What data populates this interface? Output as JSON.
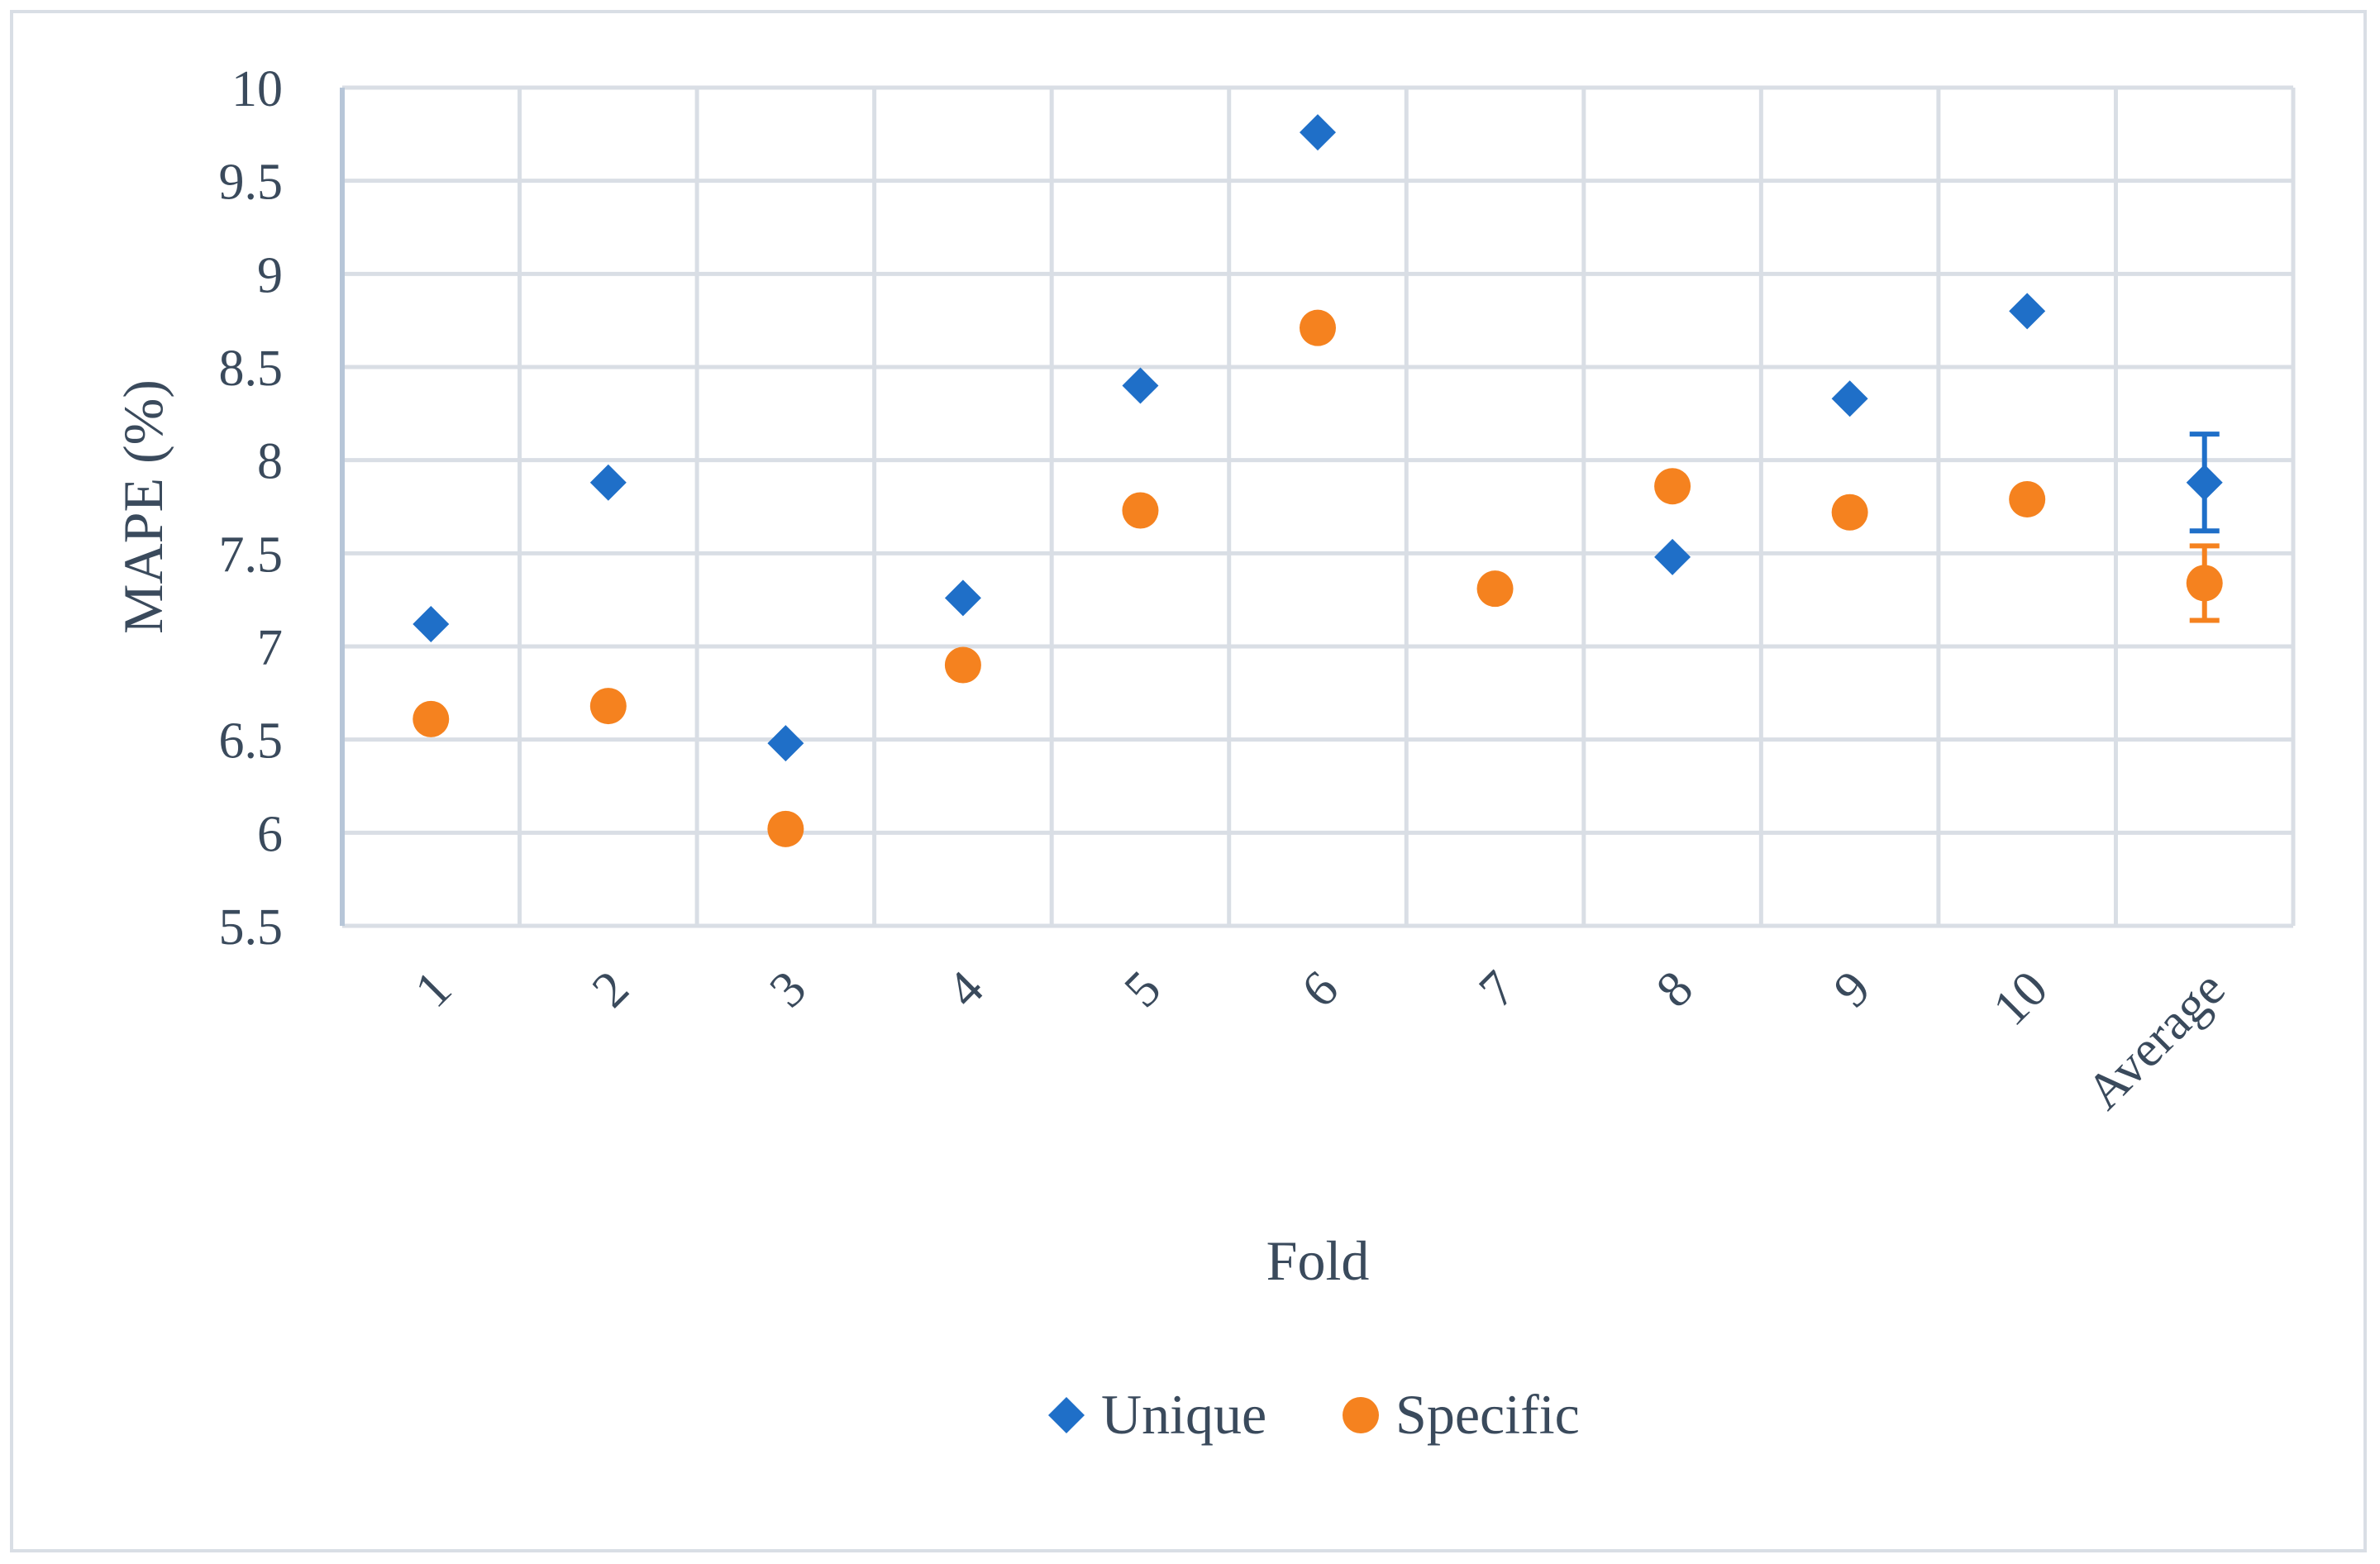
{
  "chart_data": {
    "type": "scatter",
    "categories": [
      "1",
      "2",
      "3",
      "4",
      "5",
      "6",
      "7",
      "8",
      "9",
      "10",
      "Average"
    ],
    "xlabel": "Fold",
    "ylabel": "MAPE (%)",
    "ylim": [
      5.5,
      10
    ],
    "yticks": [
      "5.5",
      "6",
      "6.5",
      "7",
      "7.5",
      "8",
      "8.5",
      "9",
      "9.5",
      "10"
    ],
    "grid": true,
    "legend_position": "bottom",
    "series": [
      {
        "name": "Unique",
        "marker": "diamond",
        "color": "#1f6fc8",
        "values": [
          7.12,
          7.88,
          6.48,
          7.26,
          8.4,
          9.76,
          null,
          7.48,
          8.33,
          8.8,
          7.88
        ],
        "error_bars": [
          null,
          null,
          null,
          null,
          null,
          null,
          null,
          null,
          null,
          null,
          0.26
        ]
      },
      {
        "name": "Specific",
        "marker": "circle",
        "color": "#f5821f",
        "values": [
          6.61,
          6.68,
          6.02,
          6.9,
          7.73,
          8.71,
          7.31,
          7.86,
          7.72,
          7.79,
          7.34
        ],
        "error_bars": [
          null,
          null,
          null,
          null,
          null,
          null,
          null,
          null,
          null,
          null,
          0.2
        ]
      }
    ]
  }
}
